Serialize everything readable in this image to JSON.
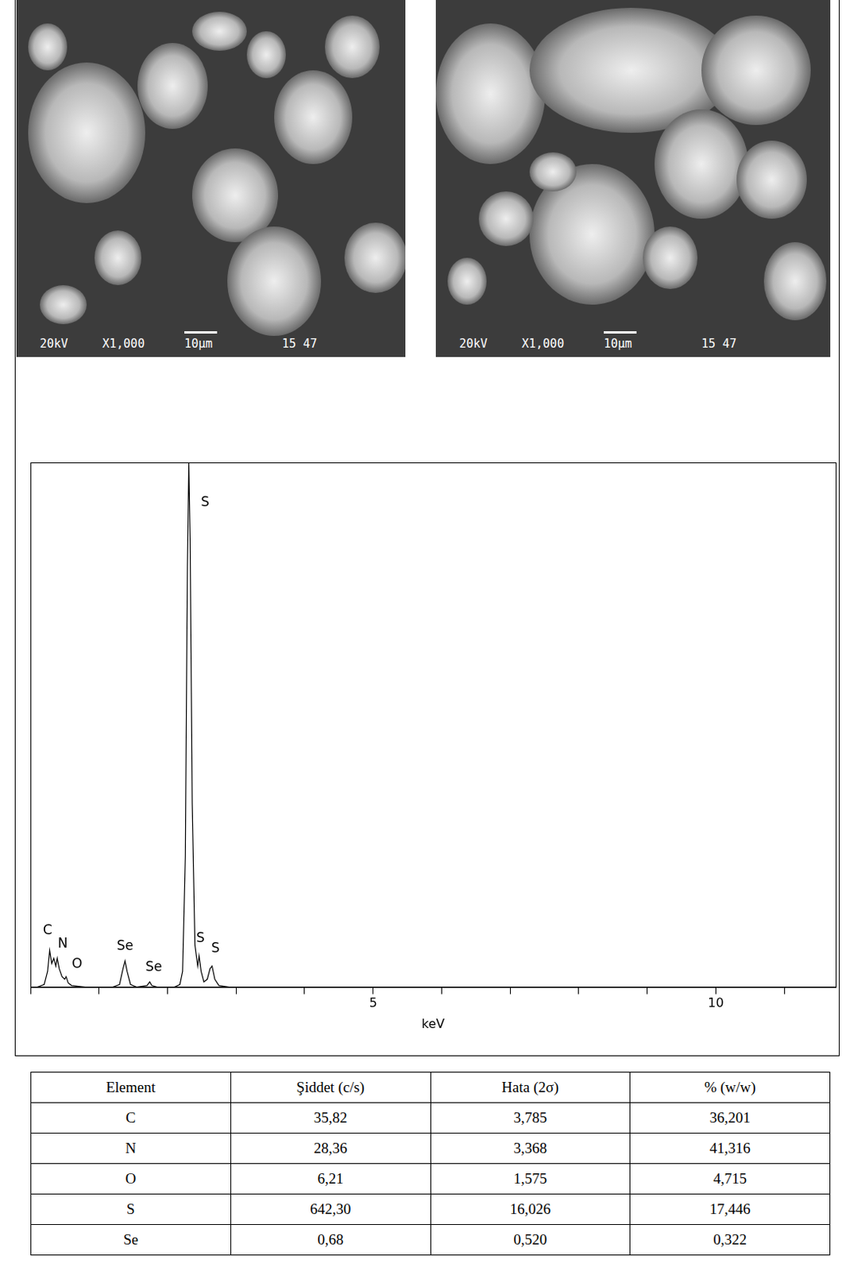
{
  "images": [
    {
      "overlay": [
        "20kV",
        "X1,000",
        "10µm",
        "15 47"
      ]
    },
    {
      "overlay": [
        "20kV",
        "X1,000",
        "10µm",
        "15 47"
      ]
    }
  ],
  "chart_data": {
    "type": "line",
    "x": [
      0.1,
      0.2,
      0.25,
      0.28,
      0.31,
      0.34,
      0.37,
      0.39,
      0.42,
      0.46,
      0.5,
      0.52,
      0.55,
      0.6,
      0.8,
      1.0,
      1.2,
      1.3,
      1.35,
      1.38,
      1.41,
      1.46,
      1.55,
      1.7,
      1.74,
      1.77,
      1.85,
      2.0,
      2.1,
      2.18,
      2.22,
      2.26,
      2.29,
      2.31,
      2.33,
      2.36,
      2.4,
      2.44,
      2.46,
      2.49,
      2.53,
      2.58,
      2.62,
      2.65,
      2.69,
      2.75,
      2.9,
      3.2,
      5,
      8,
      11.75
    ],
    "values": [
      0,
      0.5,
      3,
      7,
      4.5,
      5.5,
      4,
      5.5,
      3.5,
      2,
      1.5,
      2,
      0.8,
      0.3,
      0,
      0,
      0,
      0.5,
      3.5,
      5,
      3,
      0.5,
      0,
      0.3,
      1,
      0.3,
      0,
      0,
      0,
      0.5,
      3,
      25,
      80,
      100,
      85,
      35,
      8,
      4,
      6,
      3,
      1,
      1.5,
      3.5,
      4,
      1.5,
      0.3,
      0,
      0,
      0,
      0,
      0
    ],
    "color": "#000000",
    "xlim": [
      0,
      11.75
    ],
    "xticks": [
      5,
      10
    ],
    "ylim": [
      0,
      100
    ],
    "grid": false,
    "tick_labels": "x",
    "x_label": "keV",
    "peak_labels": [
      {
        "text": "S",
        "x": 2.55,
        "y": 91
      },
      {
        "text": "C",
        "x": 0.25,
        "y": 9.5
      },
      {
        "text": "N",
        "x": 0.47,
        "y": 7
      },
      {
        "text": "O",
        "x": 0.68,
        "y": 3
      },
      {
        "text": "Se",
        "x": 1.38,
        "y": 6.5
      },
      {
        "text": "Se",
        "x": 1.8,
        "y": 2.5
      },
      {
        "text": "S",
        "x": 2.48,
        "y": 8
      },
      {
        "text": "S",
        "x": 2.7,
        "y": 6
      }
    ]
  },
  "table": {
    "header": [
      "Element",
      "Şiddet (c/s)",
      "Hata (2σ)",
      "% (w/w)"
    ],
    "rows": [
      [
        "C",
        "35,82",
        "3,785",
        "36,201"
      ],
      [
        "N",
        "28,36",
        "3,368",
        "41,316"
      ],
      [
        "O",
        "6,21",
        "1,575",
        "4,715"
      ],
      [
        "S",
        "642,30",
        "16,026",
        "17,446"
      ],
      [
        "Se",
        "0,68",
        "0,520",
        "0,322"
      ]
    ]
  }
}
